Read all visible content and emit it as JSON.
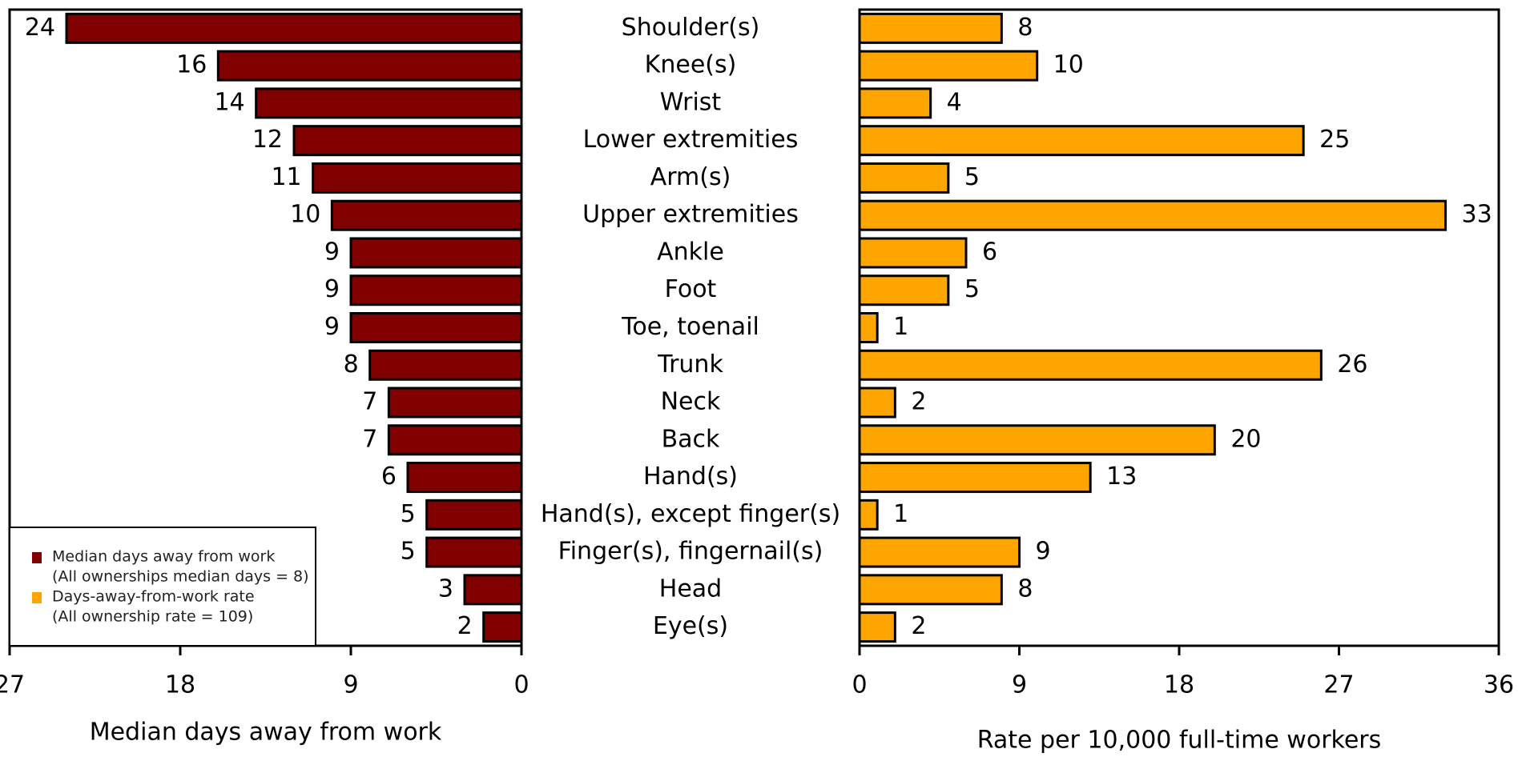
{
  "chart_data": [
    {
      "type": "bar",
      "orientation": "horizontal",
      "xlabel": "Median days away from work",
      "categories": [
        "Shoulder(s)",
        "Knee(s)",
        "Wrist",
        "Lower extremities",
        "Arm(s)",
        "Upper extremities",
        "Ankle",
        "Foot",
        "Toe, toenail",
        "Trunk",
        "Neck",
        "Back",
        "Hand(s)",
        "Hand(s), except finger(s)",
        "Finger(s), fingernail(s)",
        "Head",
        "Eye(s)"
      ],
      "series": [
        {
          "name": "Median days away from work",
          "note": "(All ownerships median days = 8)",
          "color": "#800000",
          "values": [
            24,
            16,
            14,
            12,
            11,
            10,
            9,
            9,
            9,
            8,
            7,
            7,
            6,
            5,
            5,
            3,
            2
          ]
        }
      ],
      "xlim": [
        27,
        0
      ],
      "xticks": [
        27,
        18,
        9,
        0
      ],
      "legend": "lower left"
    },
    {
      "type": "bar",
      "orientation": "horizontal",
      "xlabel": "Rate per 10,000 full-time workers",
      "series": [
        {
          "name": "Days-away-from-work rate",
          "note": "(All ownership rate = 109)",
          "color": "#FFA500",
          "values": [
            8,
            10,
            4,
            25,
            5,
            33,
            6,
            5,
            1,
            26,
            2,
            20,
            13,
            1,
            9,
            8,
            2
          ]
        }
      ],
      "xlim": [
        0,
        36
      ],
      "xticks": [
        0,
        9,
        18,
        27,
        36
      ]
    }
  ]
}
